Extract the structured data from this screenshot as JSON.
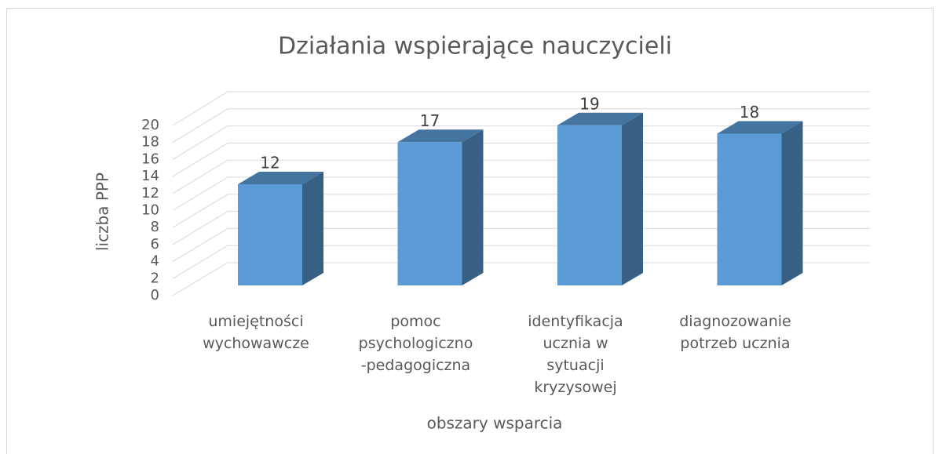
{
  "chart_data": {
    "type": "bar3d",
    "title": "Działania wspierające nauczycieli",
    "y_label": "liczba PPP",
    "x_label": "obszary wsparcia",
    "categories": [
      [
        "umiejętności",
        "wychowawcze"
      ],
      [
        "pomoc",
        "psychologiczno",
        "-pedagogiczna"
      ],
      [
        "identyfikacja",
        "ucznia w",
        "sytuacji",
        "kryzysowej"
      ],
      [
        "diagnozowanie",
        "potrzeb ucznia"
      ]
    ],
    "values": [
      12,
      17,
      19,
      18
    ],
    "color": "#5b9bd5",
    "ylim": [
      0,
      20
    ],
    "yticks": [
      0,
      2,
      4,
      6,
      8,
      10,
      12,
      14,
      16,
      18,
      20
    ],
    "grid": true
  }
}
